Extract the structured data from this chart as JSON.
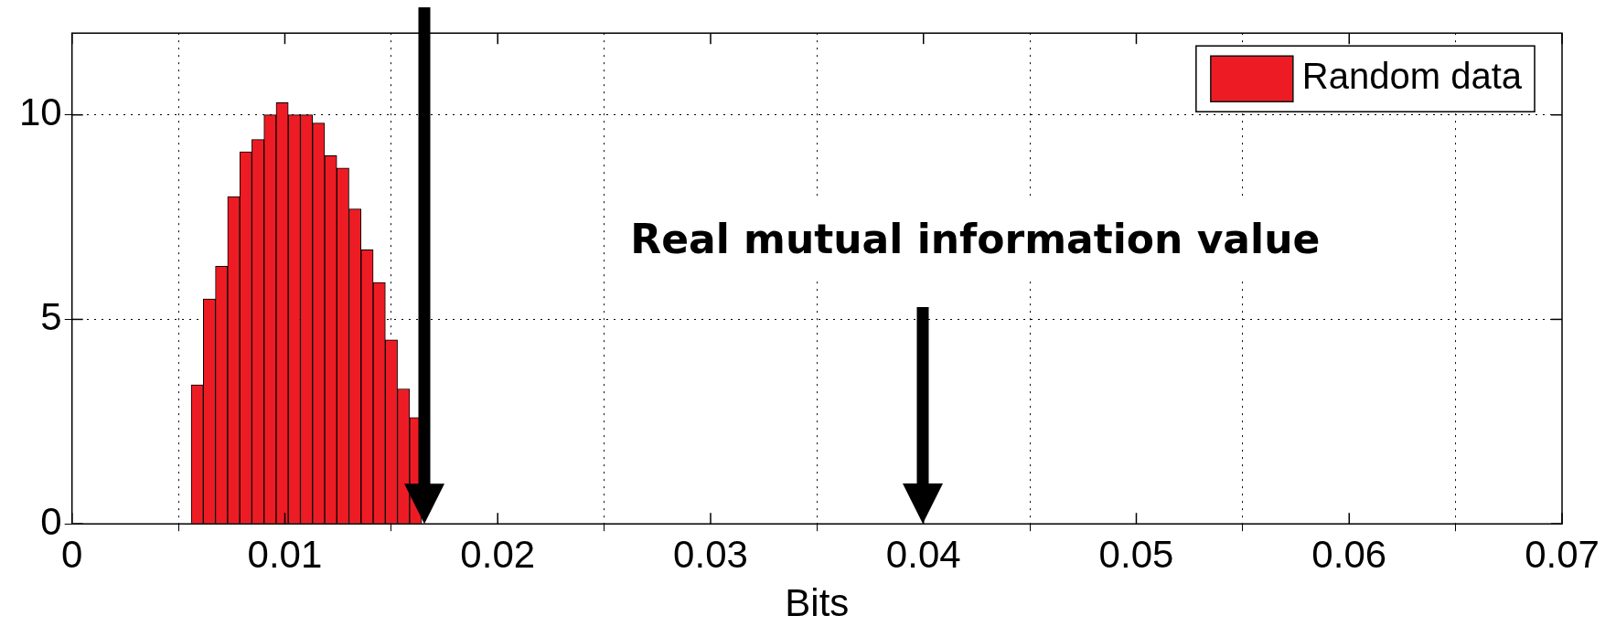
{
  "chart_data": {
    "type": "histogram",
    "xlabel": "Bits",
    "bins": [
      0.0056,
      0.00617,
      0.00674,
      0.00731,
      0.00788,
      0.00845,
      0.00902,
      0.00959,
      0.01016,
      0.01073,
      0.0113,
      0.01187,
      0.01244,
      0.01301,
      0.01358,
      0.01415,
      0.01472,
      0.01529,
      0.01586,
      0.01643
    ],
    "series": [
      {
        "name": "Random data",
        "color": "#ed1c24",
        "values": [
          3.4,
          5.5,
          6.3,
          8.0,
          9.1,
          9.4,
          10.0,
          10.3,
          10.0,
          10.0,
          9.8,
          9.0,
          8.7,
          7.7,
          6.7,
          5.9,
          4.5,
          3.3,
          2.6
        ]
      }
    ],
    "xlim": [
      0,
      0.07
    ],
    "xticks": [
      0,
      0.01,
      0.02,
      0.03,
      0.04,
      0.05,
      0.06,
      0.07
    ],
    "ylim": [
      0,
      12
    ],
    "yticks": [
      0,
      5,
      10
    ],
    "grid": true,
    "legend": "top right",
    "annotations": [
      "Real mutual information value"
    ]
  }
}
